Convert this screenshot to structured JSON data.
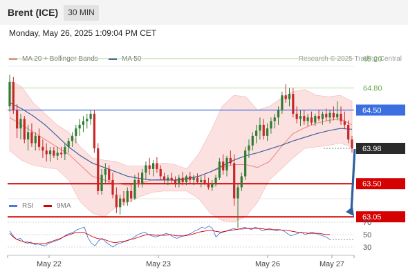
{
  "header": {
    "instrument": "Brent (ICE)",
    "timeframe": "30 MIN"
  },
  "timestamp": "Monday, May 26, 2025 1:09:04 PM CET",
  "legend": {
    "ma20": "MA 20 + Bollinger Bands",
    "ma50": "MA 50",
    "rsi": "RSI",
    "rsi9ma": "9MA"
  },
  "credit": "Research © 2025 Trading Central",
  "colors": {
    "ma20": "#f08080",
    "ma50": "#3f5f9f",
    "band_fill": "#fcdcdc",
    "bull": "#2e7d32",
    "bear": "#c62828",
    "resistance": "#b5d99c",
    "pivot": "#3b6fe0",
    "support": "#d50000",
    "current": "#333333",
    "arrow": "#2f5f9e",
    "rsi": "#4a78d8",
    "rsi_ma": "#d50000"
  },
  "chart_data": [
    {
      "type": "candlestick",
      "title": "Brent (ICE)",
      "x_ticks": [
        "May 22",
        "May 23",
        "May 26",
        "May 27"
      ],
      "levels": [
        {
          "label": "65.20",
          "value": 65.2,
          "role": "resistance"
        },
        {
          "label": "64.80",
          "value": 64.8,
          "role": "resistance"
        },
        {
          "label": "64.50",
          "value": 64.5,
          "role": "pivot"
        },
        {
          "label": "63.98",
          "value": 63.98,
          "role": "current"
        },
        {
          "label": "63.50",
          "value": 63.5,
          "role": "support"
        },
        {
          "label": "63.05",
          "value": 63.05,
          "role": "support"
        }
      ],
      "ohlc": [
        [
          64.55,
          64.98,
          64.48,
          64.88
        ],
        [
          64.88,
          64.95,
          64.45,
          64.5
        ],
        [
          64.5,
          64.58,
          64.12,
          64.25
        ],
        [
          64.25,
          64.45,
          64.1,
          64.38
        ],
        [
          64.38,
          64.42,
          64.05,
          64.1
        ],
        [
          64.1,
          64.3,
          63.95,
          64.2
        ],
        [
          64.2,
          64.32,
          64.0,
          64.05
        ],
        [
          64.05,
          64.2,
          63.95,
          64.15
        ],
        [
          64.15,
          64.25,
          63.95,
          64.0
        ],
        [
          64.0,
          64.1,
          63.85,
          63.95
        ],
        [
          63.95,
          64.05,
          63.8,
          63.9
        ],
        [
          63.9,
          64.0,
          63.8,
          63.95
        ],
        [
          63.95,
          64.0,
          63.85,
          63.88
        ],
        [
          63.88,
          64.0,
          63.82,
          63.92
        ],
        [
          63.92,
          64.0,
          63.85,
          63.9
        ],
        [
          63.9,
          64.05,
          63.82,
          64.0
        ],
        [
          64.0,
          64.12,
          63.92,
          64.08
        ],
        [
          64.08,
          64.2,
          64.0,
          64.15
        ],
        [
          64.15,
          64.3,
          64.05,
          64.25
        ],
        [
          64.25,
          64.38,
          64.15,
          64.3
        ],
        [
          64.3,
          64.42,
          64.2,
          64.35
        ],
        [
          64.35,
          64.45,
          64.25,
          64.38
        ],
        [
          64.38,
          64.5,
          64.3,
          64.45
        ],
        [
          64.45,
          64.5,
          63.92,
          63.98
        ],
        [
          63.98,
          64.05,
          63.35,
          63.4
        ],
        [
          63.4,
          63.7,
          63.35,
          63.62
        ],
        [
          63.62,
          63.78,
          63.5,
          63.7
        ],
        [
          63.7,
          63.75,
          63.5,
          63.55
        ],
        [
          63.55,
          63.65,
          63.3,
          63.35
        ],
        [
          63.35,
          63.45,
          63.1,
          63.18
        ],
        [
          63.18,
          63.35,
          63.08,
          63.3
        ],
        [
          63.3,
          63.4,
          63.2,
          63.25
        ],
        [
          63.25,
          63.45,
          63.2,
          63.4
        ],
        [
          63.4,
          63.5,
          63.25,
          63.3
        ],
        [
          63.3,
          63.62,
          63.28,
          63.55
        ],
        [
          63.55,
          63.65,
          63.45,
          63.5
        ],
        [
          63.5,
          63.7,
          63.45,
          63.65
        ],
        [
          63.65,
          63.8,
          63.55,
          63.75
        ],
        [
          63.75,
          63.85,
          63.62,
          63.7
        ],
        [
          63.7,
          63.82,
          63.6,
          63.78
        ],
        [
          63.78,
          63.86,
          63.65,
          63.7
        ],
        [
          63.7,
          63.75,
          63.55,
          63.6
        ],
        [
          63.6,
          63.65,
          63.5,
          63.55
        ],
        [
          63.55,
          63.62,
          63.48,
          63.58
        ],
        [
          63.58,
          63.65,
          63.5,
          63.55
        ],
        [
          63.55,
          63.6,
          63.45,
          63.5
        ],
        [
          63.5,
          63.62,
          63.45,
          63.58
        ],
        [
          63.58,
          63.66,
          63.48,
          63.52
        ],
        [
          63.52,
          63.62,
          63.48,
          63.6
        ],
        [
          63.6,
          63.66,
          63.5,
          63.55
        ],
        [
          63.55,
          63.62,
          63.48,
          63.58
        ],
        [
          63.58,
          63.64,
          63.5,
          63.52
        ],
        [
          63.52,
          63.6,
          63.45,
          63.55
        ],
        [
          63.55,
          63.62,
          63.48,
          63.5
        ],
        [
          63.5,
          63.58,
          63.42,
          63.45
        ],
        [
          63.45,
          63.55,
          63.4,
          63.5
        ],
        [
          63.5,
          63.62,
          63.46,
          63.58
        ],
        [
          63.58,
          63.85,
          63.55,
          63.8
        ],
        [
          63.8,
          63.9,
          63.62,
          63.68
        ],
        [
          63.68,
          63.88,
          63.6,
          63.85
        ],
        [
          63.85,
          63.95,
          63.75,
          63.78
        ],
        [
          63.78,
          63.9,
          63.2,
          63.3
        ],
        [
          63.3,
          63.5,
          62.9,
          63.45
        ],
        [
          63.45,
          63.65,
          63.4,
          63.6
        ],
        [
          63.6,
          64.0,
          63.55,
          63.95
        ],
        [
          63.95,
          64.1,
          63.85,
          64.02
        ],
        [
          64.02,
          64.2,
          63.95,
          64.15
        ],
        [
          64.15,
          64.3,
          64.05,
          64.22
        ],
        [
          64.22,
          64.4,
          64.1,
          64.3
        ],
        [
          64.3,
          64.38,
          64.1,
          64.15
        ],
        [
          64.15,
          64.32,
          64.08,
          64.25
        ],
        [
          64.25,
          64.4,
          64.18,
          64.35
        ],
        [
          64.35,
          64.45,
          64.25,
          64.4
        ],
        [
          64.4,
          64.55,
          64.3,
          64.5
        ],
        [
          64.5,
          64.75,
          64.45,
          64.7
        ],
        [
          64.7,
          64.85,
          64.6,
          64.65
        ],
        [
          64.65,
          64.8,
          64.55,
          64.72
        ],
        [
          64.72,
          64.8,
          64.4,
          64.45
        ],
        [
          64.45,
          64.55,
          64.32,
          64.38
        ],
        [
          64.38,
          64.5,
          64.28,
          64.42
        ],
        [
          64.42,
          64.5,
          64.3,
          64.35
        ],
        [
          64.35,
          64.45,
          64.28,
          64.4
        ],
        [
          64.4,
          64.48,
          64.3,
          64.33
        ],
        [
          64.33,
          64.45,
          64.28,
          64.42
        ],
        [
          64.42,
          64.5,
          64.35,
          64.38
        ],
        [
          64.38,
          64.48,
          64.3,
          64.45
        ],
        [
          64.45,
          64.52,
          64.35,
          64.4
        ],
        [
          64.4,
          64.5,
          64.32,
          64.46
        ],
        [
          64.46,
          64.55,
          64.36,
          64.4
        ],
        [
          64.4,
          64.62,
          64.36,
          64.45
        ],
        [
          64.45,
          64.55,
          64.3,
          64.35
        ],
        [
          64.35,
          64.48,
          64.25,
          64.3
        ],
        [
          64.3,
          64.36,
          64.05,
          64.1
        ],
        [
          64.1,
          64.15,
          63.92,
          63.98
        ]
      ],
      "ma20": [
        64.4,
        64.3,
        64.2,
        64.1,
        64.0,
        63.9,
        63.75,
        63.6,
        63.55,
        63.5,
        63.48,
        63.5,
        63.55,
        63.56,
        63.54,
        63.56,
        63.6,
        63.66,
        63.72,
        63.76,
        63.76,
        63.72,
        63.8,
        64.0,
        64.18,
        64.26,
        64.32,
        64.36,
        64.38,
        64.3
      ],
      "ma50": [
        64.6,
        64.52,
        64.42,
        64.3,
        64.15,
        64.0,
        63.88,
        63.78,
        63.72,
        63.66,
        63.6,
        63.57,
        63.55,
        63.55,
        63.55,
        63.57,
        63.6,
        63.66,
        63.74,
        63.82,
        63.88,
        63.92,
        63.97,
        64.02,
        64.08,
        64.13,
        64.18,
        64.22,
        64.25,
        64.24
      ],
      "bb_upper": [
        64.9,
        64.82,
        64.6,
        64.45,
        64.3,
        64.2,
        64.0,
        63.85,
        63.82,
        63.8,
        63.74,
        63.74,
        63.74,
        63.78,
        63.76,
        63.7,
        63.9,
        64.2,
        64.55,
        64.7,
        64.68,
        64.5,
        64.55,
        64.66,
        64.75,
        64.78,
        64.7,
        64.68,
        64.7,
        64.62
      ],
      "bb_lower": [
        63.95,
        63.82,
        63.75,
        63.72,
        63.7,
        63.55,
        63.25,
        63.1,
        63.05,
        63.18,
        63.25,
        63.32,
        63.38,
        63.4,
        63.4,
        63.4,
        63.3,
        63.1,
        63.0,
        62.98,
        63.05,
        63.25,
        63.55,
        63.7,
        63.85,
        63.98,
        64.0,
        64.02,
        64.05,
        64.0
      ]
    },
    {
      "type": "line",
      "title": "RSI",
      "y_ticks": [
        70,
        50,
        30
      ],
      "ylim": [
        20,
        80
      ],
      "series": [
        {
          "name": "RSI",
          "values": [
            56,
            48,
            42,
            44,
            38,
            36,
            38,
            34,
            35,
            33,
            32,
            36,
            38,
            40,
            42,
            46,
            50,
            52,
            54,
            58,
            60,
            62,
            45,
            36,
            32,
            40,
            44,
            38,
            34,
            30,
            34,
            36,
            38,
            40,
            42,
            46,
            50,
            52,
            54,
            50,
            48,
            46,
            48,
            50,
            52,
            50,
            46,
            44,
            46,
            48,
            50,
            52,
            56,
            58,
            62,
            60,
            64,
            60,
            46,
            52,
            54,
            56,
            58,
            60,
            58,
            60,
            62,
            60,
            58,
            62,
            60,
            56,
            58,
            60,
            58,
            56,
            58,
            56,
            52,
            48,
            50,
            52,
            54,
            50,
            52,
            54,
            52,
            50,
            48,
            46,
            42
          ]
        },
        {
          "name": "9MA",
          "values": [
            52,
            46,
            42,
            40,
            38,
            38,
            36,
            36,
            35,
            35,
            36,
            38,
            40,
            42,
            44,
            47,
            49,
            51,
            53,
            54,
            54,
            52,
            49,
            46,
            44,
            43,
            42,
            40,
            38,
            37,
            38,
            39,
            40,
            42,
            43,
            45,
            47,
            49,
            50,
            50,
            49,
            49,
            49,
            49,
            50,
            49,
            48,
            48,
            48,
            49,
            50,
            52,
            54,
            55,
            56,
            57,
            56,
            55,
            54,
            55,
            56,
            57,
            58,
            59,
            59,
            60,
            60,
            60,
            60,
            60,
            59,
            58,
            58,
            58,
            58,
            57,
            57,
            56,
            55,
            54,
            53,
            53,
            52,
            52,
            52,
            52,
            51,
            50,
            50
          ]
        }
      ]
    }
  ]
}
